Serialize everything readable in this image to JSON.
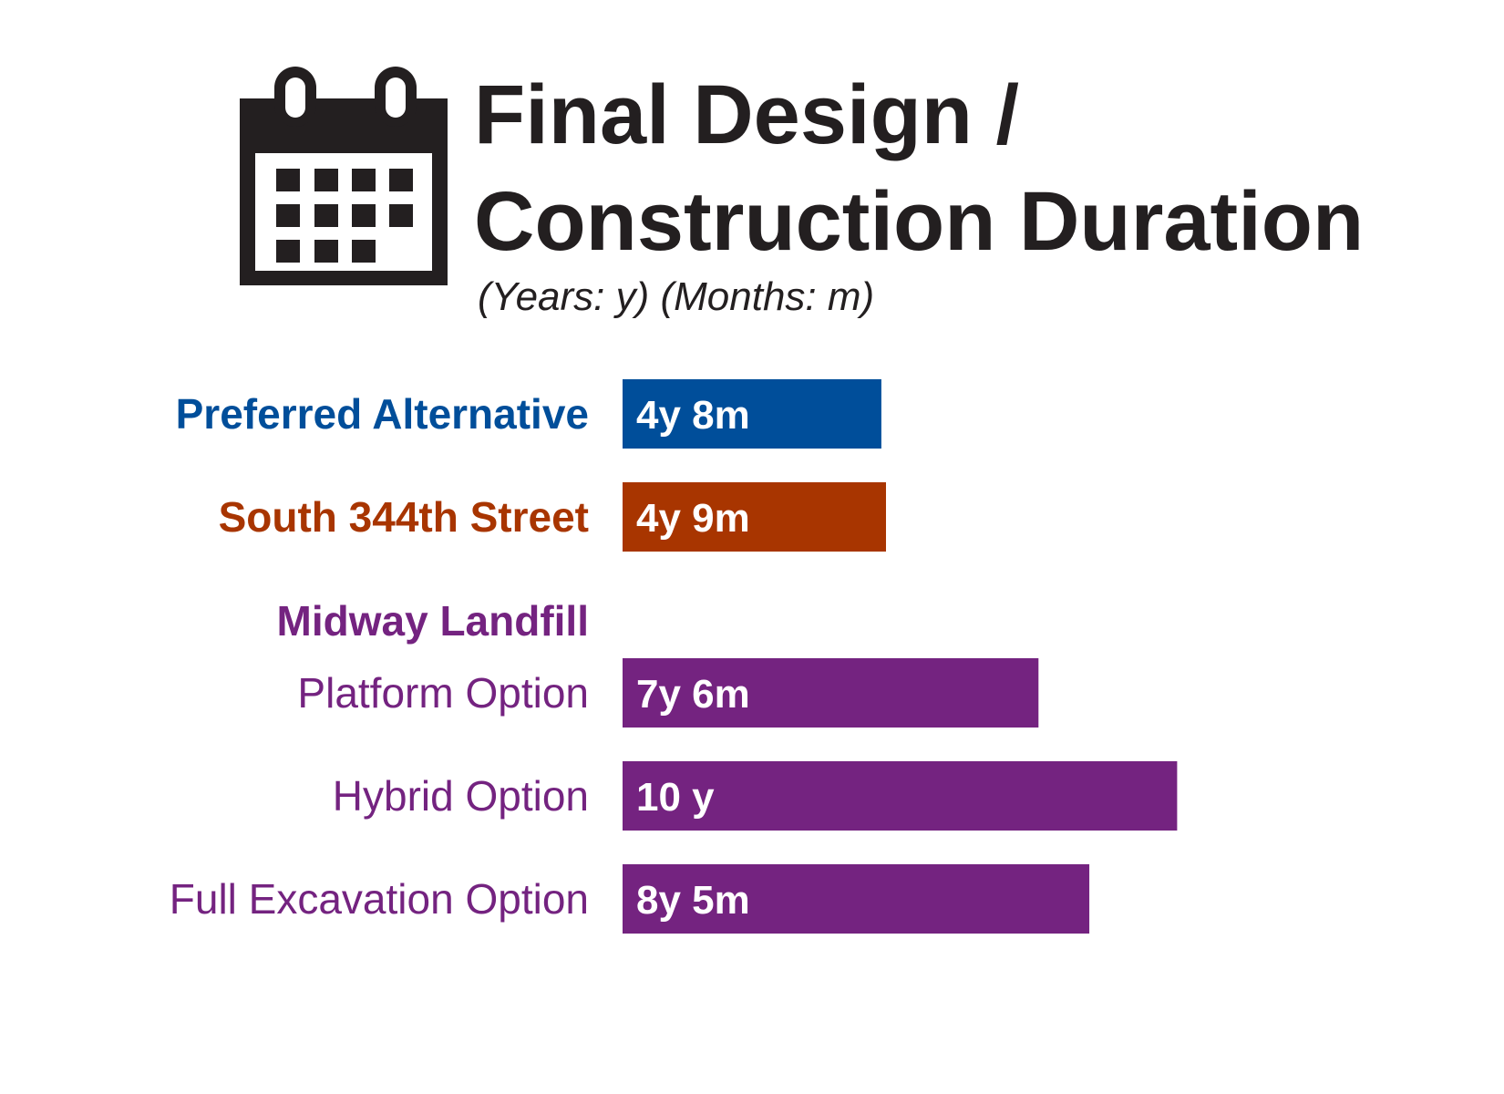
{
  "title_lines": [
    "Final Design /",
    "Construction Duration"
  ],
  "subtitle": "(Years: y) (Months: m)",
  "icon": "calendar-icon",
  "colors": {
    "title": "#231f20",
    "preferred": "#004e9a",
    "south_344th": "#a83500",
    "midway": "#742380",
    "bar_label": "#ffffff"
  },
  "chart_data": {
    "type": "bar",
    "orientation": "horizontal",
    "unit": "months",
    "group_heading": {
      "label": "Midway Landfill",
      "color": "#742380"
    },
    "categories": [
      "Preferred Alternative",
      "South 344th Street",
      "Platform Option",
      "Hybrid Option",
      "Full Excavation Option"
    ],
    "values": [
      56,
      57,
      90,
      120,
      101
    ],
    "data_labels": [
      "4y 8m",
      "4y 9m",
      "7y 6m",
      "10 y",
      "8y 5m"
    ],
    "colors": [
      "#004e9a",
      "#a83500",
      "#742380",
      "#742380",
      "#742380"
    ],
    "category_label_weight": [
      "bold",
      "bold",
      "normal",
      "normal",
      "normal"
    ],
    "xlim": [
      0,
      120
    ],
    "grid": false,
    "legend": "none"
  }
}
